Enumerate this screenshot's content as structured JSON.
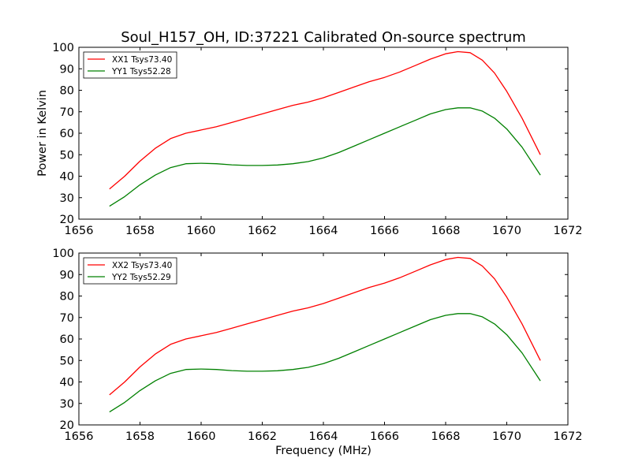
{
  "figure": {
    "title": "Soul_H157_OH, ID:37221 Calibrated On-source spectrum",
    "xlabel": "Frequency (MHz)",
    "ylabel": "Power in Kelvin"
  },
  "chart_data": [
    {
      "type": "line",
      "title": "Soul_H157_OH, ID:37221 Calibrated On-source spectrum",
      "xlabel": "",
      "ylabel": "Power in Kelvin",
      "xlim": [
        1656,
        1672
      ],
      "ylim": [
        20,
        100
      ],
      "xticks": [
        1656,
        1658,
        1660,
        1662,
        1664,
        1666,
        1668,
        1670,
        1672
      ],
      "yticks": [
        20,
        30,
        40,
        50,
        60,
        70,
        80,
        90,
        100
      ],
      "grid": false,
      "legend": "top-left",
      "series": [
        {
          "name": "XX1 Tsys73.40",
          "color": "#ff0000",
          "x": [
            1657.0,
            1657.5,
            1658.0,
            1658.5,
            1659.0,
            1659.5,
            1660.0,
            1660.5,
            1661.0,
            1661.5,
            1662.0,
            1662.5,
            1663.0,
            1663.5,
            1664.0,
            1664.5,
            1665.0,
            1665.5,
            1666.0,
            1666.5,
            1667.0,
            1667.5,
            1668.0,
            1668.4,
            1668.8,
            1669.2,
            1669.6,
            1670.0,
            1670.5,
            1671.1
          ],
          "y": [
            34,
            40,
            47,
            53,
            57.5,
            60,
            61.5,
            63,
            65,
            67,
            69,
            71,
            73,
            74.5,
            76.5,
            79,
            81.5,
            84,
            86,
            88.5,
            91.5,
            94.5,
            97,
            98,
            97.5,
            94,
            88,
            79.5,
            67,
            50
          ]
        },
        {
          "name": "YY1 Tsys52.28",
          "color": "#008000",
          "x": [
            1657.0,
            1657.5,
            1658.0,
            1658.5,
            1659.0,
            1659.5,
            1660.0,
            1660.5,
            1661.0,
            1661.5,
            1662.0,
            1662.5,
            1663.0,
            1663.5,
            1664.0,
            1664.5,
            1665.0,
            1665.5,
            1666.0,
            1666.5,
            1667.0,
            1667.5,
            1668.0,
            1668.4,
            1668.8,
            1669.2,
            1669.6,
            1670.0,
            1670.5,
            1671.1
          ],
          "y": [
            26,
            30.5,
            36,
            40.5,
            44,
            45.8,
            46,
            45.8,
            45.3,
            45,
            45,
            45.2,
            45.8,
            46.8,
            48.5,
            51,
            54,
            57,
            60,
            63,
            66,
            69,
            71,
            71.8,
            71.8,
            70.3,
            67,
            62,
            53.5,
            40.5
          ]
        }
      ]
    },
    {
      "type": "line",
      "title": "",
      "xlabel": "Frequency (MHz)",
      "ylabel": "",
      "xlim": [
        1656,
        1672
      ],
      "ylim": [
        20,
        100
      ],
      "xticks": [
        1656,
        1658,
        1660,
        1662,
        1664,
        1666,
        1668,
        1670,
        1672
      ],
      "yticks": [
        20,
        30,
        40,
        50,
        60,
        70,
        80,
        90,
        100
      ],
      "grid": false,
      "legend": "top-left",
      "series": [
        {
          "name": "XX2 Tsys73.40",
          "color": "#ff0000",
          "x": [
            1657.0,
            1657.5,
            1658.0,
            1658.5,
            1659.0,
            1659.5,
            1660.0,
            1660.5,
            1661.0,
            1661.5,
            1662.0,
            1662.5,
            1663.0,
            1663.5,
            1664.0,
            1664.5,
            1665.0,
            1665.5,
            1666.0,
            1666.5,
            1667.0,
            1667.5,
            1668.0,
            1668.4,
            1668.8,
            1669.2,
            1669.6,
            1670.0,
            1670.5,
            1671.1
          ],
          "y": [
            34,
            40,
            47,
            53,
            57.5,
            60,
            61.5,
            63,
            65,
            67,
            69,
            71,
            73,
            74.5,
            76.5,
            79,
            81.5,
            84,
            86,
            88.5,
            91.5,
            94.5,
            97,
            98,
            97.5,
            94,
            88,
            79.5,
            67,
            50
          ]
        },
        {
          "name": "YY2 Tsys52.29",
          "color": "#008000",
          "x": [
            1657.0,
            1657.5,
            1658.0,
            1658.5,
            1659.0,
            1659.5,
            1660.0,
            1660.5,
            1661.0,
            1661.5,
            1662.0,
            1662.5,
            1663.0,
            1663.5,
            1664.0,
            1664.5,
            1665.0,
            1665.5,
            1666.0,
            1666.5,
            1667.0,
            1667.5,
            1668.0,
            1668.4,
            1668.8,
            1669.2,
            1669.6,
            1670.0,
            1670.5,
            1671.1
          ],
          "y": [
            26,
            30.5,
            36,
            40.5,
            44,
            45.8,
            46,
            45.8,
            45.3,
            45,
            45,
            45.2,
            45.8,
            46.8,
            48.5,
            51,
            54,
            57,
            60,
            63,
            66,
            69,
            71,
            71.8,
            71.8,
            70.3,
            67,
            62,
            53.5,
            40.5
          ]
        }
      ]
    }
  ]
}
